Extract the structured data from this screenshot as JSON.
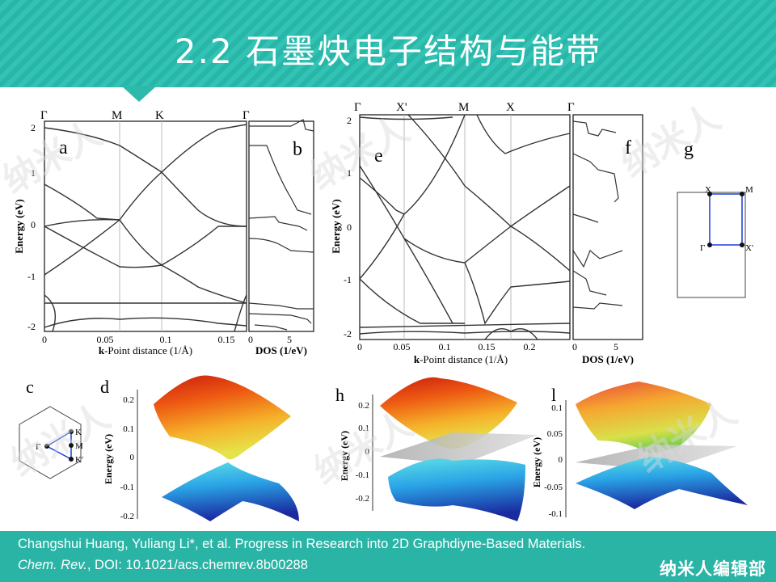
{
  "slide": {
    "title": "2.2 石墨炔电子结构与能带"
  },
  "citation": {
    "line1": "Changshui Huang, Yuliang Li*, et al. Progress in Research into 2D Graphdiyne-Based Materials.",
    "journal": "Chem. Rev.",
    "doi": ", DOI: 10.1021/acs.chemrev.8b00288"
  },
  "brand": "纳米人编辑部",
  "watermark": "纳米人",
  "colors": {
    "header": "#2db9ab",
    "footer": "#2ab4a6",
    "band": "#333333",
    "kpath": "#1a3fd6"
  },
  "panels": {
    "a": {
      "label": "a",
      "kpoints": [
        "Γ",
        "M",
        "K",
        "Γ"
      ],
      "yticks": [
        "2",
        "1",
        "0",
        "-1",
        "-2"
      ],
      "xticks": [
        "0",
        "0.05",
        "0.1",
        "0.15"
      ],
      "ylabel": "Energy (eV)",
      "xlabel_bold": "k",
      "xlabel_rest": "-Point distance (1/Å)"
    },
    "b": {
      "label": "b",
      "xticks": [
        "0",
        "5"
      ],
      "xlabel": "DOS (1/eV)"
    },
    "c": {
      "label": "c",
      "points": [
        "K",
        "Γ",
        "M",
        "K'"
      ]
    },
    "d": {
      "label": "d",
      "yticks": [
        "0.2",
        "0.1",
        "0",
        "-0.1",
        "-0.2"
      ],
      "ylabel": "Energy (eV)"
    },
    "e": {
      "label": "e",
      "kpoints": [
        "Γ",
        "X'",
        "M",
        "X",
        "Γ"
      ],
      "yticks": [
        "2",
        "1",
        "0",
        "-1",
        "-2"
      ],
      "xticks": [
        "0",
        "0.05",
        "0.1",
        "0.15",
        "0.2"
      ],
      "ylabel": "Energy (eV)",
      "xlabel_bold": "k",
      "xlabel_rest": "-Point distance (1/Å)"
    },
    "f": {
      "label": "f",
      "xticks": [
        "0",
        "5"
      ],
      "xlabel": "DOS (1/eV)"
    },
    "g": {
      "label": "g",
      "points": [
        "X",
        "M",
        "Γ",
        "X'"
      ]
    },
    "h": {
      "label": "h",
      "yticks": [
        "0.2",
        "0.1",
        "0",
        "-0.1",
        "-0.2"
      ],
      "ylabel": "Energy (eV)"
    },
    "l": {
      "label": "l",
      "yticks": [
        "0.1",
        "0.05",
        "0",
        "-0.05",
        "-0.1"
      ],
      "ylabel": "Energy (eV)"
    }
  }
}
